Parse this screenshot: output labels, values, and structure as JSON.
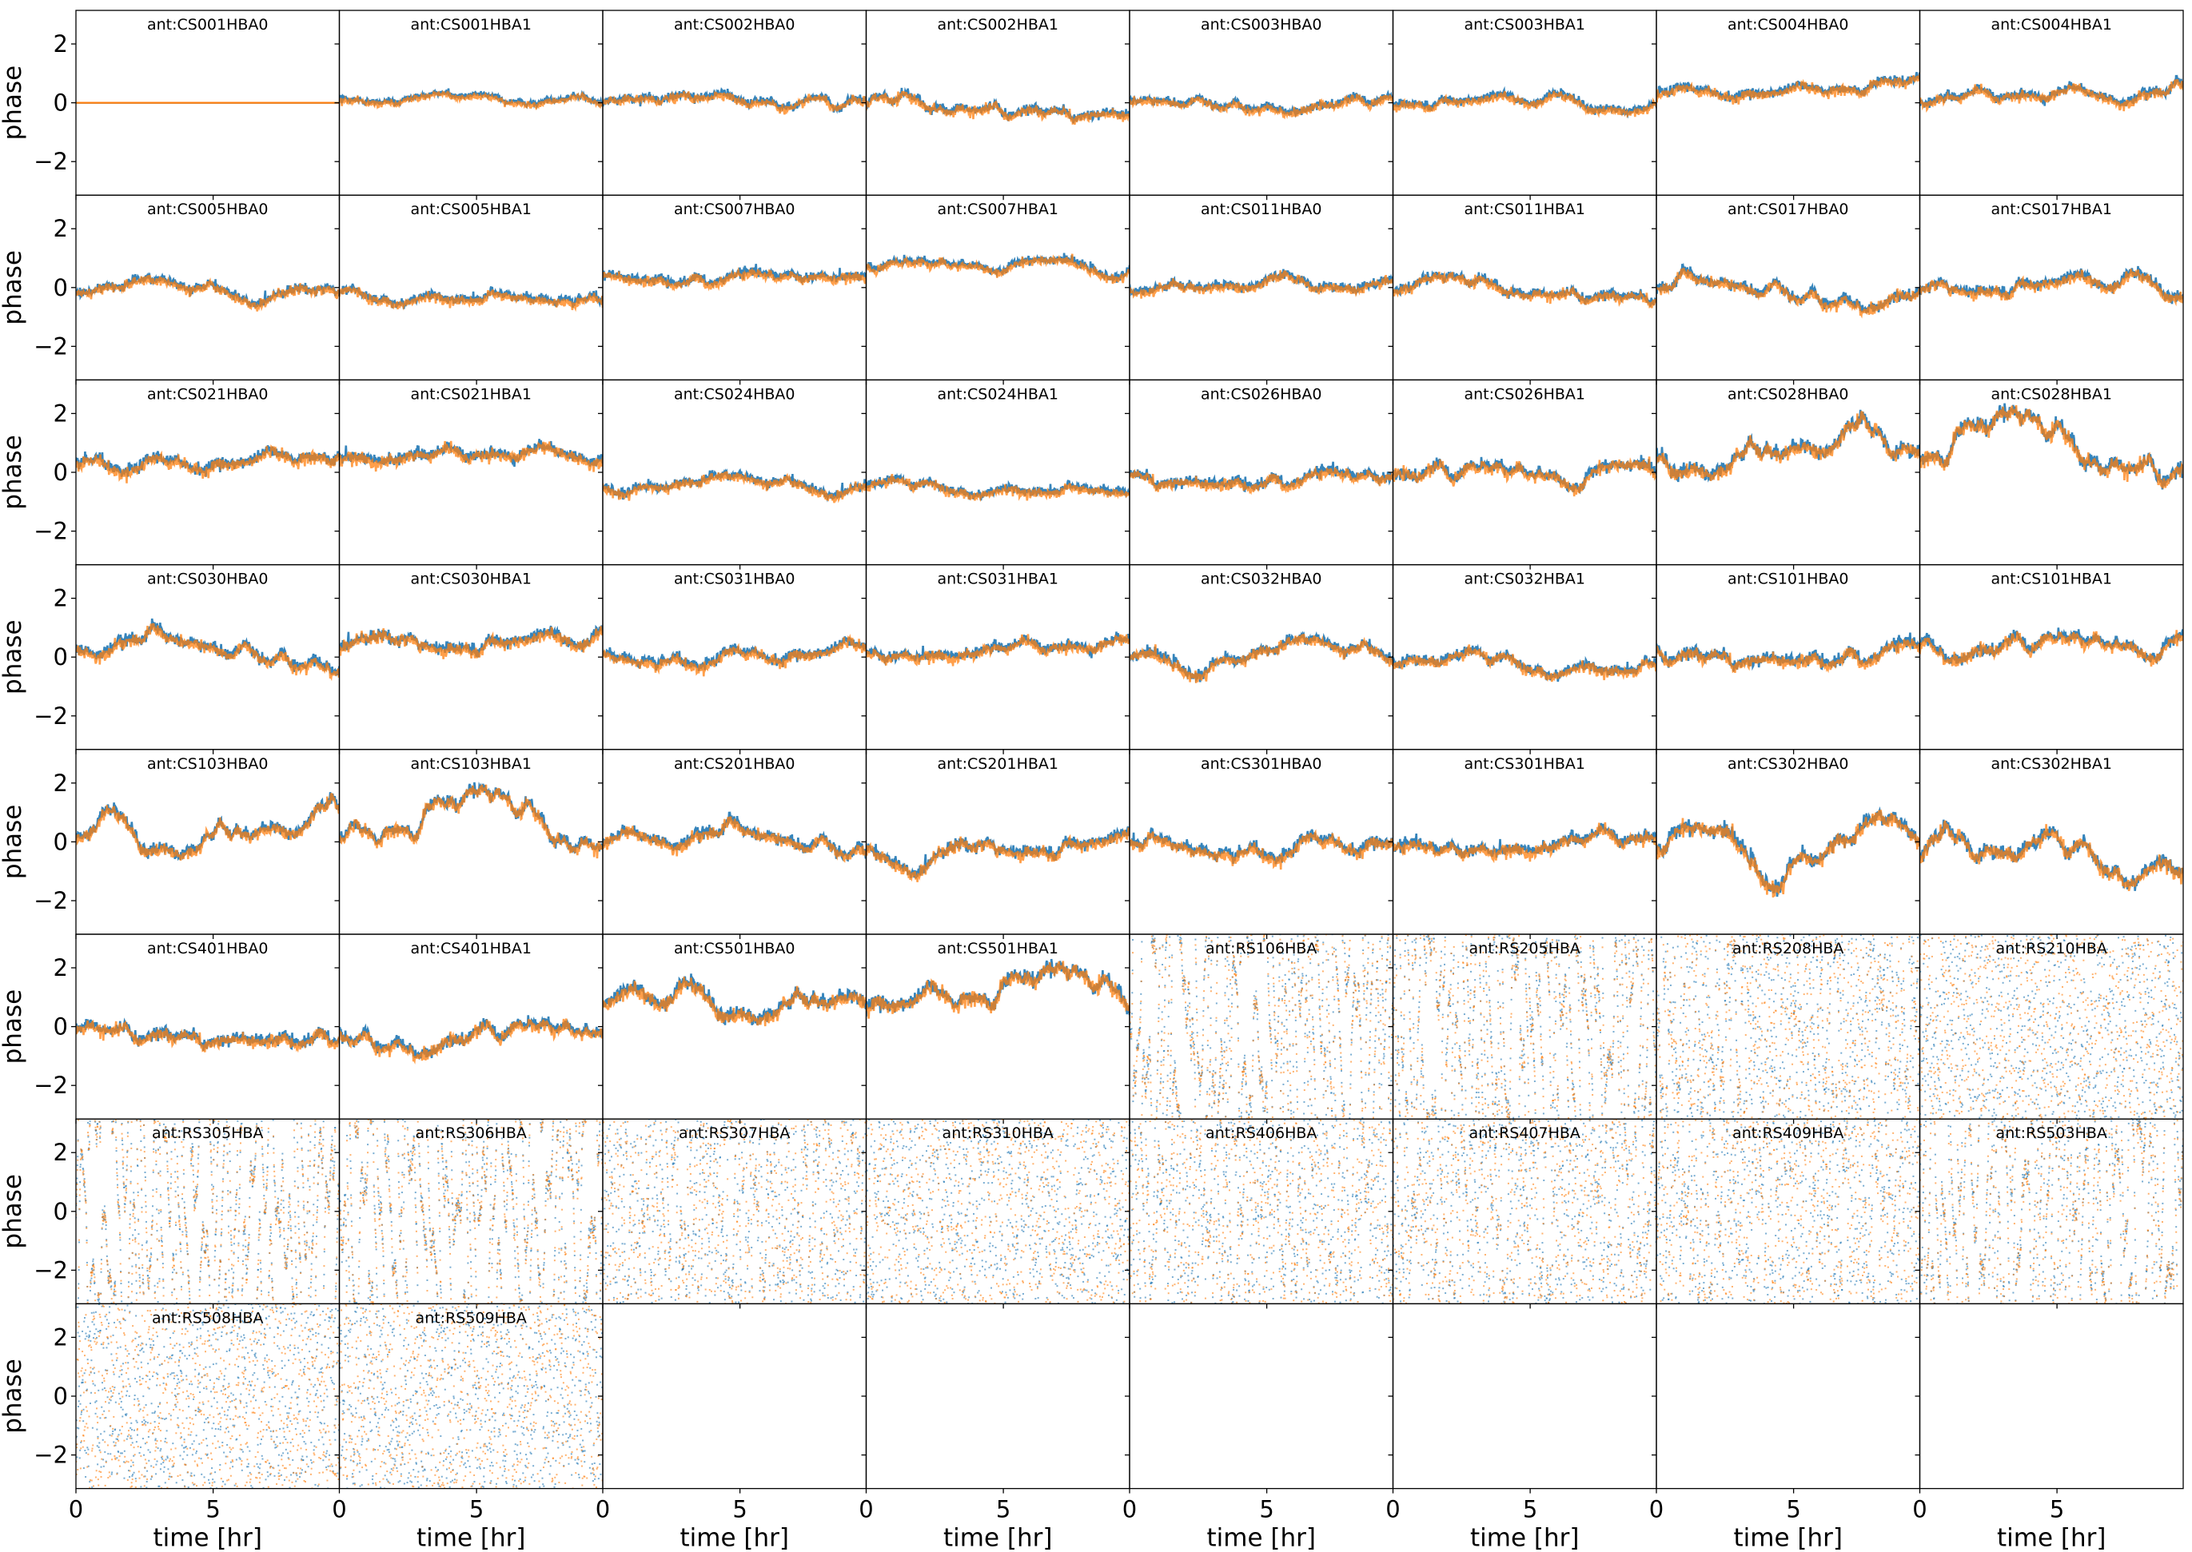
{
  "chart_data": {
    "type": "scatter",
    "layout": {
      "rows": 8,
      "cols": 8
    },
    "ylabel": "phase",
    "xlabel": "time [hr]",
    "ylim": [
      -3.1416,
      3.1416
    ],
    "xlim": [
      0,
      9.6
    ],
    "yticks": [
      -2,
      0,
      2
    ],
    "xticks": [
      0,
      5
    ],
    "series_colors": [
      "#1f77b4",
      "#ff7f0e"
    ],
    "marker_alpha": 0.6,
    "panels": [
      {
        "title": "ant:CS001HBA0",
        "mean": 0.0,
        "wander": 0.0,
        "noise": 0.0,
        "wrap": false,
        "flat": true
      },
      {
        "title": "ant:CS001HBA1",
        "mean": 0.1,
        "wander": 0.08,
        "noise": 0.05,
        "wrap": false
      },
      {
        "title": "ant:CS002HBA0",
        "mean": 0.0,
        "wander": 0.12,
        "noise": 0.07,
        "wrap": false
      },
      {
        "title": "ant:CS002HBA1",
        "mean": -0.1,
        "wander": 0.15,
        "noise": 0.08,
        "wrap": false
      },
      {
        "title": "ant:CS003HBA0",
        "mean": 0.05,
        "wander": 0.1,
        "noise": 0.07,
        "wrap": false
      },
      {
        "title": "ant:CS003HBA1",
        "mean": -0.1,
        "wander": 0.12,
        "noise": 0.07,
        "wrap": false
      },
      {
        "title": "ant:CS004HBA0",
        "mean": 0.3,
        "wander": 0.1,
        "noise": 0.08,
        "wrap": false
      },
      {
        "title": "ant:CS004HBA1",
        "mean": 0.0,
        "wander": 0.15,
        "noise": 0.08,
        "wrap": false
      },
      {
        "title": "ant:CS005HBA0",
        "mean": -0.2,
        "wander": 0.12,
        "noise": 0.08,
        "wrap": false
      },
      {
        "title": "ant:CS005HBA1",
        "mean": -0.2,
        "wander": 0.12,
        "noise": 0.08,
        "wrap": false
      },
      {
        "title": "ant:CS007HBA0",
        "mean": 0.4,
        "wander": 0.12,
        "noise": 0.08,
        "wrap": false
      },
      {
        "title": "ant:CS007HBA1",
        "mean": 0.75,
        "wander": 0.1,
        "noise": 0.07,
        "wrap": false
      },
      {
        "title": "ant:CS011HBA0",
        "mean": -0.1,
        "wander": 0.12,
        "noise": 0.08,
        "wrap": false
      },
      {
        "title": "ant:CS011HBA1",
        "mean": -0.15,
        "wander": 0.12,
        "noise": 0.08,
        "wrap": false
      },
      {
        "title": "ant:CS017HBA0",
        "mean": -0.05,
        "wander": 0.18,
        "noise": 0.09,
        "wrap": false
      },
      {
        "title": "ant:CS017HBA1",
        "mean": -0.1,
        "wander": 0.18,
        "noise": 0.09,
        "wrap": false
      },
      {
        "title": "ant:CS021HBA0",
        "mean": 0.3,
        "wander": 0.15,
        "noise": 0.1,
        "wrap": false
      },
      {
        "title": "ant:CS021HBA1",
        "mean": 0.35,
        "wander": 0.15,
        "noise": 0.1,
        "wrap": false
      },
      {
        "title": "ant:CS024HBA0",
        "mean": -0.5,
        "wander": 0.1,
        "noise": 0.08,
        "wrap": false
      },
      {
        "title": "ant:CS024HBA1",
        "mean": -0.5,
        "wander": 0.1,
        "noise": 0.08,
        "wrap": false
      },
      {
        "title": "ant:CS026HBA0",
        "mean": -0.1,
        "wander": 0.15,
        "noise": 0.09,
        "wrap": false
      },
      {
        "title": "ant:CS026HBA1",
        "mean": -0.1,
        "wander": 0.2,
        "noise": 0.1,
        "wrap": false
      },
      {
        "title": "ant:CS028HBA0",
        "mean": 0.5,
        "wander": 0.3,
        "noise": 0.12,
        "wrap": false
      },
      {
        "title": "ant:CS028HBA1",
        "mean": 0.4,
        "wander": 0.3,
        "noise": 0.12,
        "wrap": false
      },
      {
        "title": "ant:CS030HBA0",
        "mean": 0.2,
        "wander": 0.18,
        "noise": 0.1,
        "wrap": false
      },
      {
        "title": "ant:CS030HBA1",
        "mean": 0.3,
        "wander": 0.18,
        "noise": 0.1,
        "wrap": false
      },
      {
        "title": "ant:CS031HBA0",
        "mean": 0.1,
        "wander": 0.15,
        "noise": 0.09,
        "wrap": false
      },
      {
        "title": "ant:CS031HBA1",
        "mean": 0.1,
        "wander": 0.15,
        "noise": 0.09,
        "wrap": false
      },
      {
        "title": "ant:CS032HBA0",
        "mean": 0.05,
        "wander": 0.15,
        "noise": 0.09,
        "wrap": false
      },
      {
        "title": "ant:CS032HBA1",
        "mean": -0.2,
        "wander": 0.15,
        "noise": 0.09,
        "wrap": false
      },
      {
        "title": "ant:CS101HBA0",
        "mean": 0.3,
        "wander": 0.2,
        "noise": 0.1,
        "wrap": false
      },
      {
        "title": "ant:CS101HBA1",
        "mean": 0.4,
        "wander": 0.2,
        "noise": 0.1,
        "wrap": false
      },
      {
        "title": "ant:CS103HBA0",
        "mean": 0.1,
        "wander": 0.3,
        "noise": 0.1,
        "wrap": false
      },
      {
        "title": "ant:CS103HBA1",
        "mean": 0.1,
        "wander": 0.3,
        "noise": 0.1,
        "wrap": false
      },
      {
        "title": "ant:CS201HBA0",
        "mean": -0.1,
        "wander": 0.18,
        "noise": 0.1,
        "wrap": false
      },
      {
        "title": "ant:CS201HBA1",
        "mean": -0.3,
        "wander": 0.2,
        "noise": 0.1,
        "wrap": false
      },
      {
        "title": "ant:CS301HBA0",
        "mean": 0.0,
        "wander": 0.2,
        "noise": 0.1,
        "wrap": false
      },
      {
        "title": "ant:CS301HBA1",
        "mean": -0.2,
        "wander": 0.2,
        "noise": 0.1,
        "wrap": false
      },
      {
        "title": "ant:CS302HBA0",
        "mean": -0.3,
        "wander": 0.3,
        "noise": 0.12,
        "wrap": false
      },
      {
        "title": "ant:CS302HBA1",
        "mean": -0.5,
        "wander": 0.3,
        "noise": 0.12,
        "wrap": false
      },
      {
        "title": "ant:CS401HBA0",
        "mean": -0.1,
        "wander": 0.18,
        "noise": 0.1,
        "wrap": false
      },
      {
        "title": "ant:CS401HBA1",
        "mean": -0.2,
        "wander": 0.2,
        "noise": 0.1,
        "wrap": false
      },
      {
        "title": "ant:CS501HBA0",
        "mean": 0.7,
        "wander": 0.25,
        "noise": 0.12,
        "wrap": false
      },
      {
        "title": "ant:CS501HBA1",
        "mean": 0.6,
        "wander": 0.25,
        "noise": 0.12,
        "wrap": false
      },
      {
        "title": "ant:RS106HBA",
        "mean": 0.0,
        "wander": 3.0,
        "noise": 0.15,
        "wrap": true
      },
      {
        "title": "ant:RS205HBA",
        "mean": 0.0,
        "wander": 3.0,
        "noise": 0.15,
        "wrap": true
      },
      {
        "title": "ant:RS208HBA",
        "mean": 0.0,
        "wander": 6.0,
        "noise": 0.4,
        "wrap": true
      },
      {
        "title": "ant:RS210HBA",
        "mean": 0.0,
        "wander": 8.0,
        "noise": 1.2,
        "wrap": true
      },
      {
        "title": "ant:RS305HBA",
        "mean": 0.0,
        "wander": 2.5,
        "noise": 0.12,
        "wrap": true
      },
      {
        "title": "ant:RS306HBA",
        "mean": 0.0,
        "wander": 2.5,
        "noise": 0.15,
        "wrap": true
      },
      {
        "title": "ant:RS307HBA",
        "mean": 0.0,
        "wander": 5.0,
        "noise": 0.3,
        "wrap": true
      },
      {
        "title": "ant:RS310HBA",
        "mean": 0.0,
        "wander": 7.0,
        "noise": 1.0,
        "wrap": true
      },
      {
        "title": "ant:RS406HBA",
        "mean": 0.0,
        "wander": 5.0,
        "noise": 0.3,
        "wrap": true
      },
      {
        "title": "ant:RS407HBA",
        "mean": 0.0,
        "wander": 6.0,
        "noise": 0.35,
        "wrap": true
      },
      {
        "title": "ant:RS409HBA",
        "mean": 0.0,
        "wander": 6.0,
        "noise": 0.35,
        "wrap": true
      },
      {
        "title": "ant:RS503HBA",
        "mean": 0.0,
        "wander": 3.0,
        "noise": 0.15,
        "wrap": true
      },
      {
        "title": "ant:RS508HBA",
        "mean": 0.0,
        "wander": 8.0,
        "noise": 1.2,
        "wrap": true
      },
      {
        "title": "ant:RS509HBA",
        "mean": 0.0,
        "wander": 8.0,
        "noise": 1.2,
        "wrap": true
      },
      {
        "title": "",
        "empty": true
      },
      {
        "title": "",
        "empty": true
      },
      {
        "title": "",
        "empty": true
      },
      {
        "title": "",
        "empty": true
      },
      {
        "title": "",
        "empty": true
      },
      {
        "title": "",
        "empty": true
      }
    ]
  }
}
